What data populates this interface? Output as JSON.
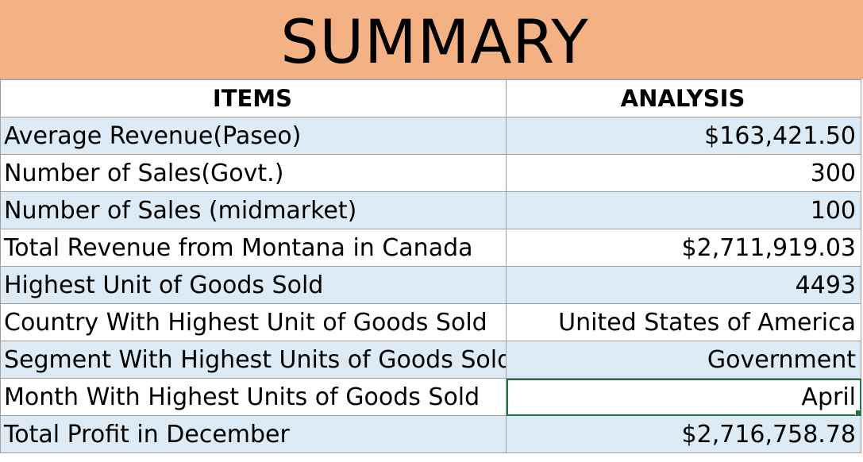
{
  "title": "SUMMARY",
  "headers": {
    "items": "ITEMS",
    "analysis": "ANALYSIS"
  },
  "rows": [
    {
      "item": "Average Revenue(Paseo)",
      "analysis": "$163,421.50"
    },
    {
      "item": "Number of Sales(Govt.)",
      "analysis": "300"
    },
    {
      "item": "Number of Sales (midmarket)",
      "analysis": "100"
    },
    {
      "item": "Total Revenue from Montana in Canada",
      "analysis": "$2,711,919.03"
    },
    {
      "item": "Highest Unit of Goods Sold",
      "analysis": "4493"
    },
    {
      "item": "Country With Highest Unit of Goods Sold",
      "analysis": "United States of America"
    },
    {
      "item": "Segment With Highest Units of Goods Sold",
      "analysis": "Government"
    },
    {
      "item": "Month With Highest Units of Goods Sold",
      "analysis": "April"
    },
    {
      "item": "Total Profit in December",
      "analysis": "$2,716,758.78"
    }
  ],
  "selected_cell_row": 7,
  "colors": {
    "title_fill": "#f4b183",
    "row_band": "#ddebf7",
    "selection": "#217346"
  }
}
